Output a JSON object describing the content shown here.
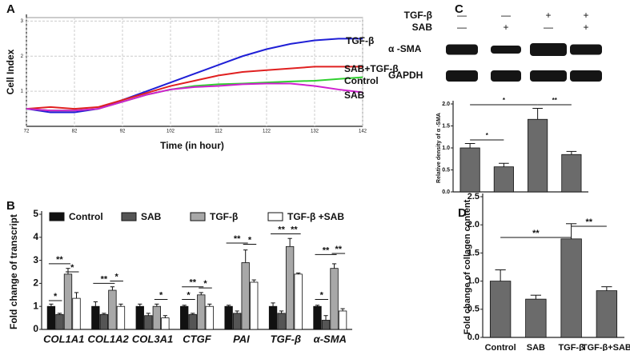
{
  "chart_data": [
    {
      "type": "line",
      "panel_label": "A",
      "xlabel": "Time (in hour)",
      "ylabel": "Cell Index",
      "x": [
        72,
        77,
        82,
        87,
        92,
        97,
        102,
        107,
        112,
        117,
        122,
        127,
        132,
        137,
        142
      ],
      "xlim": [
        72,
        142
      ],
      "xticks": [
        72,
        82,
        92,
        102,
        112,
        122,
        132,
        142
      ],
      "ylim": [
        0,
        3.1
      ],
      "yticks": [
        1,
        2,
        3
      ],
      "grid": true,
      "series": [
        {
          "name": "TGF-β",
          "color": "#1f1fd6",
          "values": [
            0.5,
            0.4,
            0.4,
            0.5,
            0.75,
            1.0,
            1.25,
            1.5,
            1.75,
            2.0,
            2.2,
            2.35,
            2.45,
            2.5,
            2.5
          ]
        },
        {
          "name": "SAB+TGF-β",
          "color": "#e02020",
          "values": [
            0.5,
            0.55,
            0.5,
            0.55,
            0.75,
            0.95,
            1.15,
            1.3,
            1.45,
            1.55,
            1.6,
            1.65,
            1.7,
            1.7,
            1.7
          ]
        },
        {
          "name": "Control",
          "color": "#30d030",
          "values": [
            0.5,
            0.45,
            0.45,
            0.5,
            0.7,
            0.9,
            1.05,
            1.15,
            1.2,
            1.22,
            1.25,
            1.28,
            1.3,
            1.35,
            1.4
          ]
        },
        {
          "name": "SAB",
          "color": "#d020d0",
          "values": [
            0.5,
            0.45,
            0.45,
            0.5,
            0.7,
            0.9,
            1.05,
            1.12,
            1.15,
            1.2,
            1.22,
            1.22,
            1.15,
            1.05,
            0.97
          ]
        }
      ]
    },
    {
      "type": "bar",
      "panel_label": "B",
      "ylabel": "Fold change of transcript",
      "categories": [
        "COL1A1",
        "COL1A2",
        "COL3A1",
        "CTGF",
        "PAI",
        "TGF-β",
        "α-SMA"
      ],
      "ylim": [
        0,
        5
      ],
      "yticks": [
        0,
        1,
        2,
        3,
        4,
        5
      ],
      "series": [
        {
          "name": "Control",
          "color": "#111111",
          "values": [
            1.0,
            1.0,
            1.0,
            1.0,
            1.0,
            1.0,
            1.0
          ],
          "errors": [
            0.1,
            0.2,
            0.1,
            0.05,
            0.05,
            0.15,
            0.05
          ]
        },
        {
          "name": "SAB",
          "color": "#555555",
          "values": [
            0.65,
            0.65,
            0.6,
            0.65,
            0.7,
            0.7,
            0.4
          ],
          "errors": [
            0.05,
            0.05,
            0.1,
            0.05,
            0.1,
            0.1,
            0.2
          ]
        },
        {
          "name": "TGF-β",
          "color": "#a8a8a8",
          "values": [
            2.4,
            1.7,
            1.0,
            1.5,
            2.9,
            3.6,
            2.65
          ],
          "errors": [
            0.25,
            0.15,
            0.1,
            0.1,
            0.55,
            0.35,
            0.2
          ]
        },
        {
          "name": "TGF-β +SAB",
          "color": "#ffffff",
          "values": [
            1.35,
            1.0,
            0.5,
            1.0,
            2.05,
            2.4,
            0.8
          ],
          "errors": [
            0.25,
            0.1,
            0.1,
            0.1,
            0.1,
            0.05,
            0.1
          ]
        }
      ],
      "annotations": [
        "*",
        "**",
        "*",
        "**",
        "*",
        "*",
        "*",
        "**",
        "*",
        "**",
        "*",
        "**",
        "**",
        "*",
        "**",
        "**"
      ]
    },
    {
      "type": "bar",
      "panel_label": "C",
      "ylabel": "Relative density of α -SMA",
      "values": [
        1.0,
        0.57,
        1.65,
        0.85
      ],
      "errors": [
        0.1,
        0.08,
        0.25,
        0.07
      ],
      "color": "#6b6b6b",
      "ylim": [
        0,
        2
      ],
      "yticks": [
        {
          "value": 0,
          "label": "0.0"
        },
        {
          "value": 0.5,
          "label": "0.5"
        },
        {
          "value": 1,
          "label": "1.0"
        },
        {
          "value": 1.5,
          "label": "1.5"
        },
        {
          "value": 2,
          "label": "2.0"
        }
      ],
      "annotations": [
        "*",
        "*",
        "**"
      ]
    },
    {
      "type": "bar",
      "panel_label": "D",
      "ylabel": "Fold change of  collagen content",
      "categories": [
        "Control",
        "SAB",
        "TGF-β",
        "TGF-β+SAB"
      ],
      "values": [
        1.0,
        0.68,
        1.75,
        0.83
      ],
      "errors": [
        0.2,
        0.07,
        0.27,
        0.07
      ],
      "color": "#6b6b6b",
      "ylim": [
        0,
        2.5
      ],
      "yticks": [
        {
          "value": 0,
          "label": "0.0"
        },
        {
          "value": 0.5,
          "label": "0.5"
        },
        {
          "value": 1,
          "label": "1.0"
        },
        {
          "value": 1.5,
          "label": "1.5"
        },
        {
          "value": 2,
          "label": "2.0"
        },
        {
          "value": 2.5,
          "label": "2.5"
        }
      ],
      "annotations": [
        "**",
        "**"
      ]
    }
  ],
  "blot": {
    "rows": [
      {
        "label": "TGF-β",
        "signs": [
          "—",
          "—",
          "+",
          "+"
        ]
      },
      {
        "label": "SAB",
        "signs": [
          "—",
          "+",
          "—",
          "+"
        ]
      }
    ],
    "bands": [
      "α -SMA",
      "GAPDH"
    ]
  }
}
